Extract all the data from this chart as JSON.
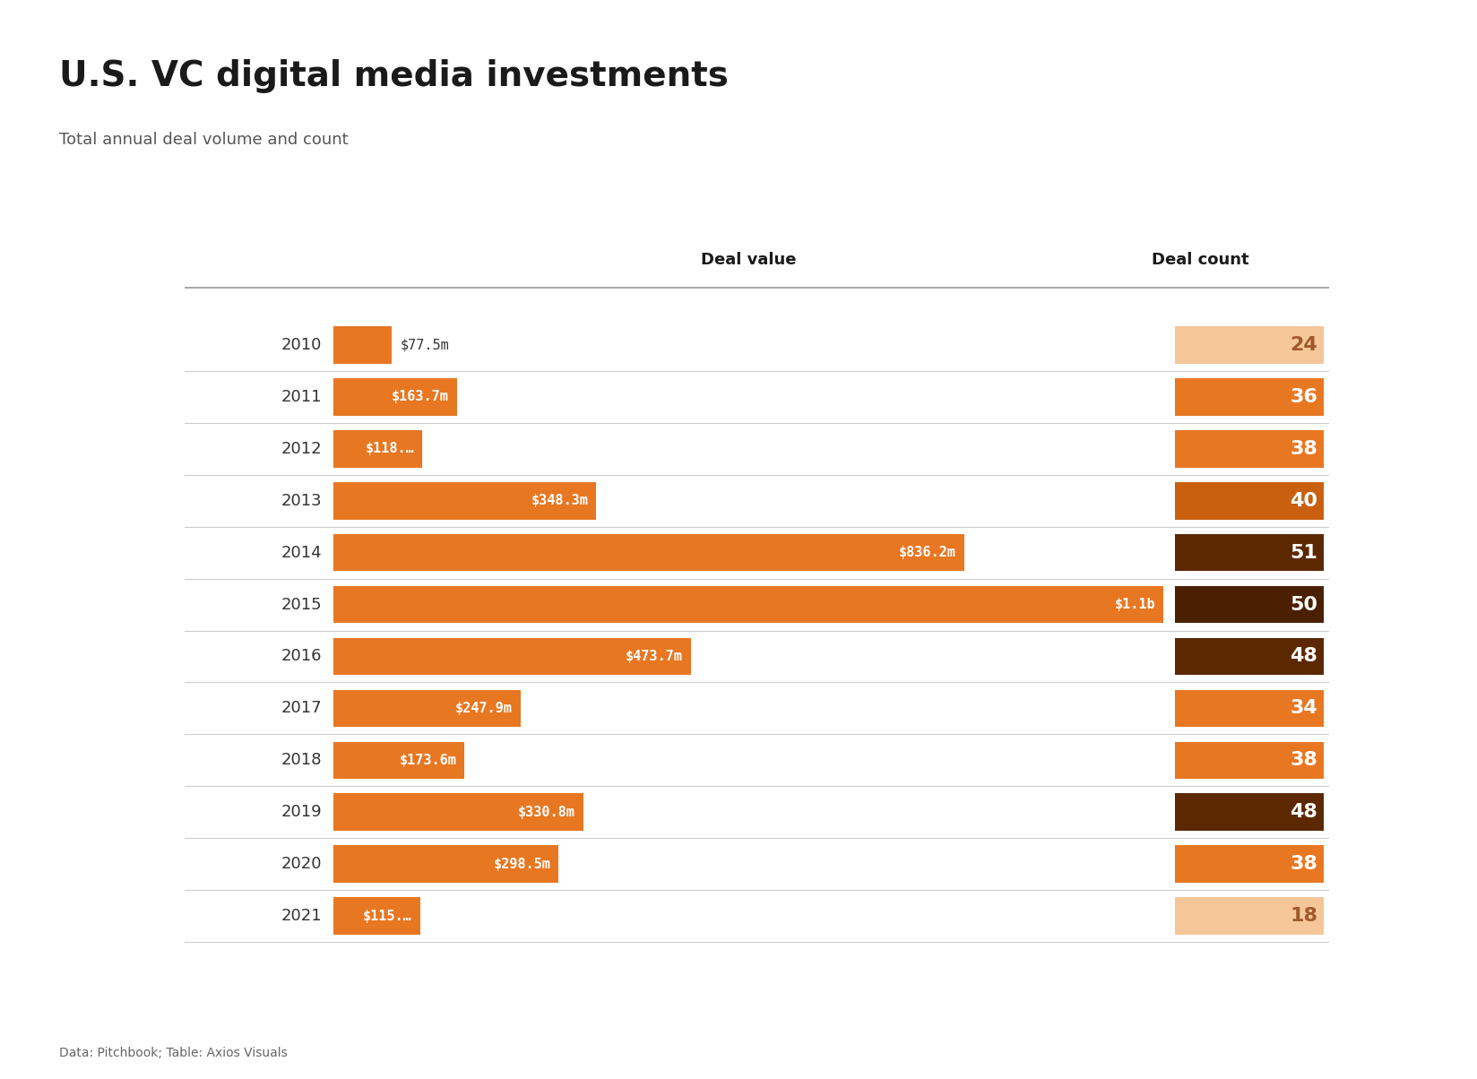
{
  "title": "U.S. VC digital media investments",
  "subtitle": "Total annual deal volume and count",
  "footnote": "Data: Pitchbook; Table: Axios Visuals",
  "years": [
    "2010",
    "2011",
    "2012",
    "2013",
    "2014",
    "2015",
    "2016",
    "2017",
    "2018",
    "2019",
    "2020",
    "2021"
  ],
  "deal_values_m": [
    77.5,
    163.7,
    118.0,
    348.3,
    836.2,
    1100.0,
    473.7,
    247.9,
    173.6,
    330.8,
    298.5,
    115.0
  ],
  "deal_value_labels": [
    "$77.5m",
    "$163.7m",
    "$118.…",
    "$348.3m",
    "$836.2m",
    "$1.1b",
    "$473.7m",
    "$247.9m",
    "$173.6m",
    "$330.8m",
    "$298.5m",
    "$115.…"
  ],
  "deal_counts": [
    24,
    36,
    38,
    40,
    51,
    50,
    48,
    34,
    38,
    48,
    38,
    18
  ],
  "deal_count_colors": [
    "#f5c698",
    "#e87722",
    "#e87722",
    "#c96010",
    "#5c2800",
    "#4a2000",
    "#5c2800",
    "#e87722",
    "#e87722",
    "#5c2800",
    "#e87722",
    "#f5c698"
  ],
  "deal_count_text_colors": [
    "#a05a2c",
    "#ffffff",
    "#ffffff",
    "#ffffff",
    "#ffffff",
    "#ffffff",
    "#ffffff",
    "#ffffff",
    "#ffffff",
    "#ffffff",
    "#ffffff",
    "#a05a2c"
  ],
  "bar_color": "#e87722",
  "label_inside_color": "#ffffff",
  "label_outside_color": "#333333",
  "background_color": "#ffffff",
  "header_line_color": "#999999",
  "row_line_color": "#cccccc",
  "deal_value_header": "Deal value",
  "deal_count_header": "Deal count",
  "max_value": 1100.0,
  "title_fontsize": 28,
  "subtitle_fontsize": 13,
  "label_fontsize": 11,
  "header_fontsize": 13,
  "year_fontsize": 13,
  "count_fontsize": 16
}
